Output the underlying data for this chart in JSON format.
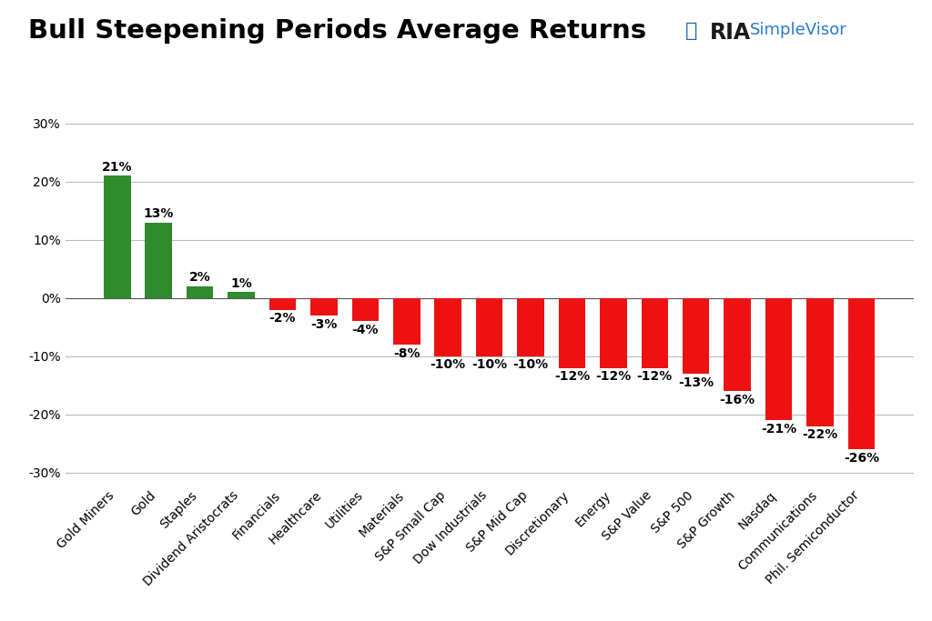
{
  "title": "Bull Steepening Periods Average Returns",
  "categories": [
    "Gold Miners",
    "Gold",
    "Staples",
    "Dividend Aristocrats",
    "Financials",
    "Healthcare",
    "Utilities",
    "Materials",
    "S&P Small Cap",
    "Dow Industrials",
    "S&P Mid Cap",
    "Discretionary",
    "Energy",
    "S&P Value",
    "S&P 500",
    "S&P Growth",
    "Nasdaq",
    "Communications",
    "Phil. Semiconductor"
  ],
  "values": [
    21,
    13,
    2,
    1,
    -2,
    -3,
    -4,
    -8,
    -10,
    -10,
    -10,
    -12,
    -12,
    -12,
    -13,
    -16,
    -21,
    -22,
    -26
  ],
  "bar_color_positive": "#2e8b2e",
  "bar_color_negative": "#ee1111",
  "label_color": "#000000",
  "background_color": "#ffffff",
  "grid_color": "#bbbbbb",
  "ylim": [
    -32,
    32
  ],
  "yticks": [
    -30,
    -20,
    -10,
    0,
    10,
    20,
    30
  ],
  "title_fontsize": 21,
  "label_fontsize": 10,
  "tick_fontsize": 10,
  "xtick_fontsize": 10,
  "ria_color": "#1a1a1a",
  "simplevisor_color": "#2979c8",
  "bar_width": 0.65
}
